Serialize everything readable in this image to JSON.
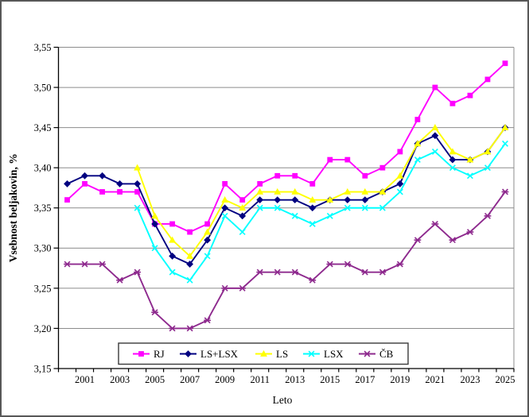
{
  "window": {
    "background": "#FFFFFF",
    "border_color": "#585858"
  },
  "chart_data": {
    "type": "line",
    "title": "",
    "ylabel": "Vsebnost beljakovin, %",
    "xlabel": "Leto",
    "ylim": [
      3.15,
      3.55
    ],
    "ytick_step": 0.05,
    "y_tick_labels": [
      "3,15",
      "3,20",
      "3,25",
      "3,30",
      "3,35",
      "3,40",
      "3,45",
      "3,50",
      "3,55"
    ],
    "x": [
      2000,
      2001,
      2002,
      2003,
      2004,
      2005,
      2006,
      2007,
      2008,
      2009,
      2010,
      2011,
      2012,
      2013,
      2014,
      2015,
      2016,
      2017,
      2018,
      2019,
      2020,
      2021,
      2022,
      2023,
      2024,
      2025
    ],
    "x_tick_labels": [
      "2001",
      "2003",
      "2005",
      "2007",
      "2009",
      "2011",
      "2013",
      "2015",
      "2017",
      "2019",
      "2021",
      "2023",
      "2025"
    ],
    "grid": "horizontal",
    "gridline_color": "#8C8C8C",
    "axis_color": "#000000",
    "legend_position": "bottom-inside",
    "series": [
      {
        "name": "RJ",
        "color": "#FF00FF",
        "marker": "square",
        "values": [
          3.36,
          3.38,
          3.37,
          3.37,
          3.37,
          3.33,
          3.33,
          3.32,
          3.33,
          3.38,
          3.36,
          3.38,
          3.39,
          3.39,
          3.38,
          3.41,
          3.41,
          3.39,
          3.4,
          3.42,
          3.46,
          3.5,
          3.48,
          3.49,
          3.51,
          3.53
        ]
      },
      {
        "name": "LS+LSX",
        "color": "#000080",
        "marker": "diamond",
        "values": [
          3.38,
          3.39,
          3.39,
          3.38,
          3.38,
          3.33,
          3.29,
          3.28,
          3.31,
          3.35,
          3.34,
          3.36,
          3.36,
          3.36,
          3.35,
          3.36,
          3.36,
          3.36,
          3.37,
          3.38,
          3.43,
          3.44,
          3.41,
          3.41,
          3.42,
          3.45
        ]
      },
      {
        "name": "LS",
        "color": "#FFFF00",
        "marker": "triangle",
        "values": [
          null,
          null,
          null,
          null,
          3.4,
          3.34,
          3.31,
          3.29,
          3.32,
          3.36,
          3.35,
          3.37,
          3.37,
          3.37,
          3.36,
          3.36,
          3.37,
          3.37,
          3.37,
          3.39,
          3.43,
          3.45,
          3.42,
          3.41,
          3.42,
          3.45
        ]
      },
      {
        "name": "LSX",
        "color": "#00FFFF",
        "marker": "x",
        "values": [
          null,
          null,
          null,
          null,
          3.35,
          3.3,
          3.27,
          3.26,
          3.29,
          3.34,
          3.32,
          3.35,
          3.35,
          3.34,
          3.33,
          3.34,
          3.35,
          3.35,
          3.35,
          3.37,
          3.41,
          3.42,
          3.4,
          3.39,
          3.4,
          3.43
        ]
      },
      {
        "name": "ČB",
        "color": "#8E2A8E",
        "marker": "star",
        "values": [
          3.28,
          3.28,
          3.28,
          3.26,
          3.27,
          3.22,
          3.2,
          3.2,
          3.21,
          3.25,
          3.25,
          3.27,
          3.27,
          3.27,
          3.26,
          3.28,
          3.28,
          3.27,
          3.27,
          3.28,
          3.31,
          3.33,
          3.31,
          3.32,
          3.34,
          3.37
        ]
      }
    ]
  }
}
